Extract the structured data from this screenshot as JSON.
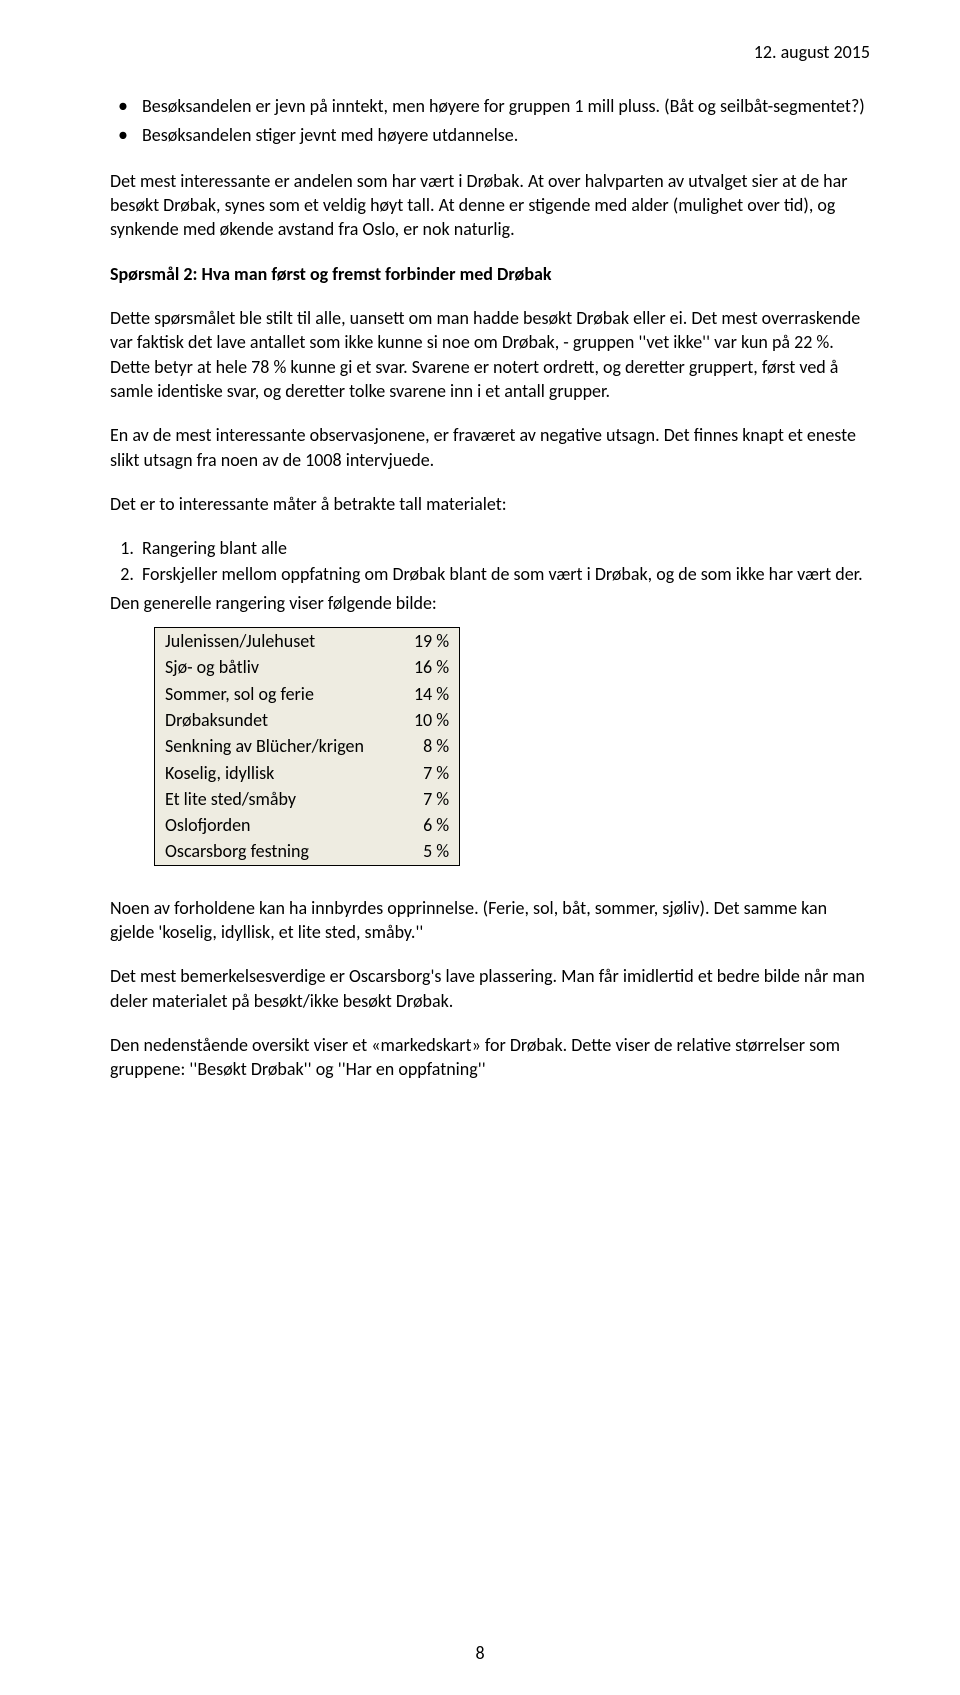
{
  "header": {
    "date": "12. august 2015"
  },
  "bullets": [
    "Besøksandelen er jevn på inntekt, men høyere for gruppen 1 mill pluss. (Båt og seilbåt-segmentet?)",
    "Besøksandelen stiger jevnt med høyere utdannelse."
  ],
  "paragraphs": {
    "p1": "Det mest interessante er andelen som har vært i Drøbak. At over halvparten av utvalget sier at de har besøkt Drøbak, synes som et veldig høyt tall. At denne er stigende med alder (mulighet over tid), og synkende med økende avstand fra Oslo, er nok naturlig.",
    "h1": "Spørsmål 2: Hva man først og fremst forbinder med Drøbak",
    "p2": "Dette spørsmålet ble stilt til alle, uansett om man hadde besøkt Drøbak eller ei. Det mest overraskende var faktisk det lave antallet som ikke kunne si noe om Drøbak, - gruppen ''vet ikke'' var kun på 22 %. Dette betyr at hele 78 % kunne gi et svar. Svarene er notert ordrett, og deretter gruppert, først ved å samle identiske svar, og deretter tolke svarene inn i et antall grupper.",
    "p3": "En av de mest interessante observasjonene, er fraværet av negative utsagn. Det finnes knapt et eneste slikt utsagn fra noen av de 1008 intervjuede.",
    "p4": "Det er to interessante måter å betrakte tall materialet:",
    "ol": [
      "Rangering blant alle",
      "Forskjeller mellom oppfatning om Drøbak blant de som vært i Drøbak, og de som ikke har vært der."
    ],
    "p5": "Den generelle rangering viser følgende bilde:",
    "p6": "Noen av forholdene kan ha innbyrdes opprinnelse. (Ferie, sol, båt, sommer, sjøliv). Det samme kan gjelde 'koselig, idyllisk, et lite sted, småby.''",
    "p7": "Det mest bemerkelsesverdige er Oscarsborg's lave plassering. Man får imidlertid et bedre bilde når man deler materialet på besøkt/ikke besøkt Drøbak.",
    "p8": "Den nedenstående oversikt viser et «markedskart» for Drøbak. Dette viser de relative størrelser som gruppene: ''Besøkt Drøbak'' og ''Har en oppfatning''"
  },
  "ranking_table": {
    "type": "table",
    "background_color": "#eeece1",
    "border_color": "#000000",
    "columns": [
      "label",
      "percent"
    ],
    "rows": [
      {
        "label": "Julenissen/Julehuset",
        "value": "19 %"
      },
      {
        "label": "Sjø- og båtliv",
        "value": "16 %"
      },
      {
        "label": "Sommer, sol og ferie",
        "value": "14 %"
      },
      {
        "label": "Drøbaksundet",
        "value": "10 %"
      },
      {
        "label": "Senkning av Blücher/krigen",
        "value": "8 %"
      },
      {
        "label": "Koselig, idyllisk",
        "value": "7 %"
      },
      {
        "label": "Et lite sted/småby",
        "value": "7 %"
      },
      {
        "label": "Oslofjorden",
        "value": "6 %"
      },
      {
        "label": "Oscarsborg festning",
        "value": "5 %"
      }
    ]
  },
  "page_number": "8"
}
